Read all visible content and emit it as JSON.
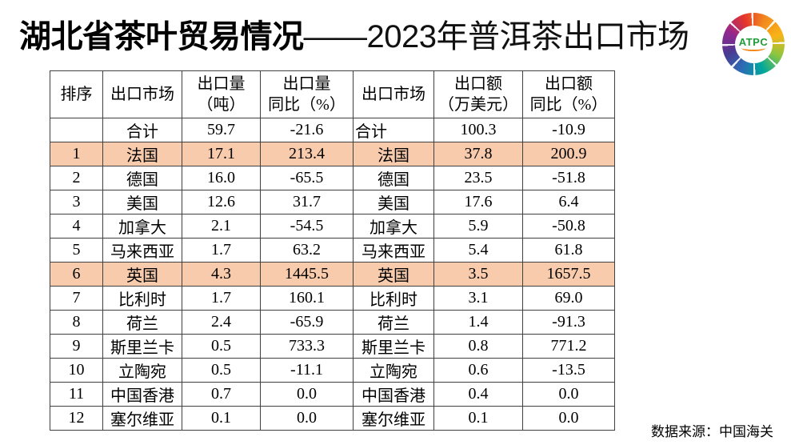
{
  "title": {
    "bold_part": "湖北省茶叶贸易情况",
    "light_part": "——2023年普洱茶出口市场"
  },
  "logo": {
    "text": "ATPC",
    "text_color": "#1f9d3a",
    "ring_colors": [
      "#e5352b",
      "#f28a1e",
      "#f9b317",
      "#8cc63f",
      "#00a79d",
      "#2b6cb5",
      "#4b3a92",
      "#93268f"
    ]
  },
  "footer": {
    "source": "数据来源：中国海关"
  },
  "chart_data": {
    "type": "table",
    "title": "湖北省茶叶贸易情况——2023年普洱茶出口市场",
    "columns": [
      "排序",
      "出口市场",
      "出口量（吨）",
      "出口量同比（%）",
      "出口市场",
      "出口额（万美元）",
      "出口额同比（%）"
    ],
    "header_display": [
      [
        "排序"
      ],
      [
        "出口市场"
      ],
      [
        "出口量",
        "（吨）"
      ],
      [
        "出口量",
        "同比（%）"
      ],
      [
        "出口市场"
      ],
      [
        "出口额",
        "（万美元）"
      ],
      [
        "出口额",
        "同比（%）"
      ]
    ],
    "highlight_color": "#F8CBAD",
    "highlighted_ranks": [
      "1",
      "6"
    ],
    "rows": [
      {
        "cells": [
          "",
          "合计",
          "59.7",
          "-21.6",
          "合计",
          "100.3",
          "-10.9"
        ],
        "highlight": false,
        "left_cols": [
          4
        ]
      },
      {
        "cells": [
          "1",
          "法国",
          "17.1",
          "213.4",
          "法国",
          "37.8",
          "200.9"
        ],
        "highlight": true
      },
      {
        "cells": [
          "2",
          "德国",
          "16.0",
          "-65.5",
          "德国",
          "23.5",
          "-51.8"
        ],
        "highlight": false
      },
      {
        "cells": [
          "3",
          "美国",
          "12.6",
          "31.7",
          "美国",
          "17.6",
          "6.4"
        ],
        "highlight": false
      },
      {
        "cells": [
          "4",
          "加拿大",
          "2.1",
          "-54.5",
          "加拿大",
          "5.9",
          "-50.8"
        ],
        "highlight": false
      },
      {
        "cells": [
          "5",
          "马来西亚",
          "1.7",
          "63.2",
          "马来西亚",
          "5.4",
          "61.8"
        ],
        "highlight": false
      },
      {
        "cells": [
          "6",
          "英国",
          "4.3",
          "1445.5",
          "英国",
          "3.5",
          "1657.5"
        ],
        "highlight": true
      },
      {
        "cells": [
          "7",
          "比利时",
          "1.7",
          "160.1",
          "比利时",
          "3.1",
          "69.0"
        ],
        "highlight": false
      },
      {
        "cells": [
          "8",
          "荷兰",
          "2.4",
          "-65.9",
          "荷兰",
          "1.4",
          "-91.3"
        ],
        "highlight": false
      },
      {
        "cells": [
          "9",
          "斯里兰卡",
          "0.5",
          "733.3",
          "斯里兰卡",
          "0.8",
          "771.2"
        ],
        "highlight": false
      },
      {
        "cells": [
          "10",
          "立陶宛",
          "0.5",
          "-11.1",
          "立陶宛",
          "0.6",
          "-13.5"
        ],
        "highlight": false
      },
      {
        "cells": [
          "11",
          "中国香港",
          "0.7",
          "0.0",
          "中国香港",
          "0.4",
          "0.0"
        ],
        "highlight": false
      },
      {
        "cells": [
          "12",
          "塞尔维亚",
          "0.1",
          "0.0",
          "塞尔维亚",
          "0.1",
          "0.0"
        ],
        "highlight": false
      }
    ],
    "source": "数据来源：中国海关"
  }
}
